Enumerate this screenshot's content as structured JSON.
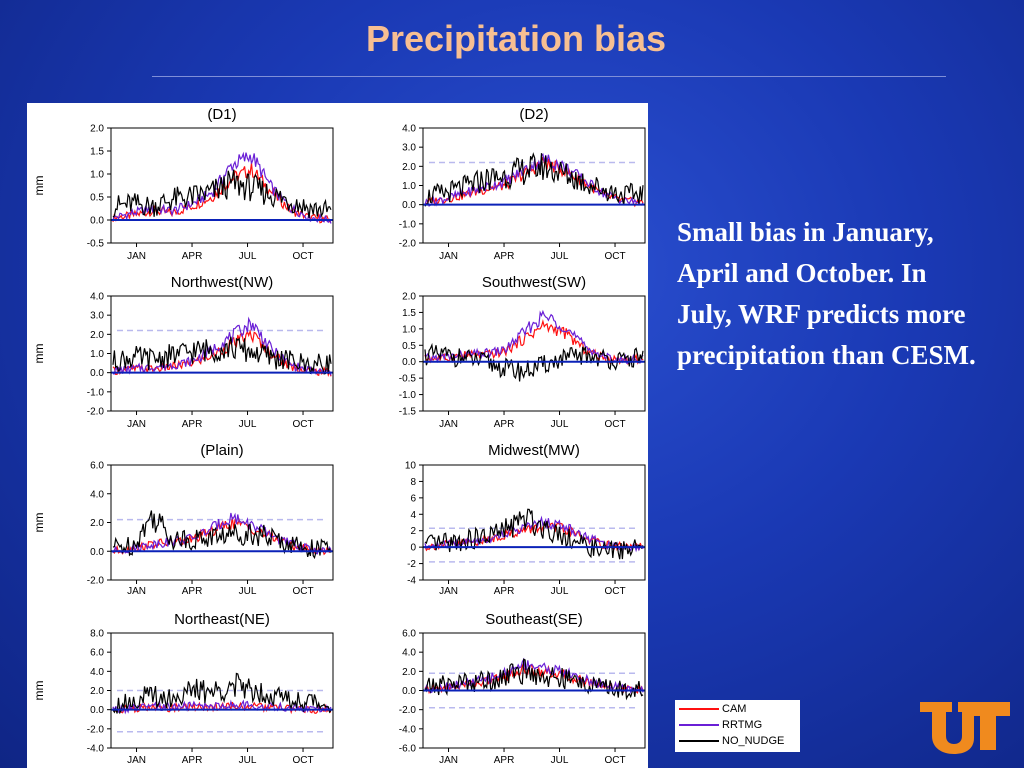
{
  "slide": {
    "title": "Precipitation bias",
    "body_text": "Small bias in January, April and October. In July, WRF predicts more precipitation than CESM."
  },
  "colors": {
    "background": "#1a39b4",
    "title": "#f7bf92",
    "CAM": "#ff1010",
    "RRTMG": "#6a1fd6",
    "NO_NUDGE": "#000000",
    "zero_line": "#0b22b8",
    "dashed_band": "#b9b9ee"
  },
  "legend": {
    "items": [
      {
        "label": "CAM",
        "color": "#ff1010"
      },
      {
        "label": "RRTMG",
        "color": "#6a1fd6"
      },
      {
        "label": "NO_NUDGE",
        "color": "#000000"
      }
    ]
  },
  "logo": {
    "name": "ut-logo-icon",
    "color": "#f08a1e"
  },
  "chart_data": [
    {
      "type": "line",
      "title": "(D1)",
      "ylabel": "mm",
      "ylim": [
        -0.5,
        2.0
      ],
      "yticks": [
        "2.0",
        "1.5",
        "1.0",
        "0.5",
        "0.0",
        "-0.5"
      ],
      "band": null,
      "xticks": [
        "JAN",
        "APR",
        "JUL",
        "OCT"
      ],
      "series": [
        {
          "name": "CAM",
          "values": [
            0.05,
            0.1,
            0.2,
            0.15,
            0.3,
            0.5,
            0.9,
            1.1,
            0.6,
            0.2,
            0.05,
            0.0
          ]
        },
        {
          "name": "RRTMG",
          "values": [
            0.05,
            0.15,
            0.25,
            0.2,
            0.35,
            0.6,
            1.2,
            1.4,
            0.7,
            0.25,
            0.05,
            0.0
          ]
        },
        {
          "name": "NO_NUDGE",
          "values": [
            0.3,
            0.35,
            0.3,
            0.45,
            0.5,
            0.6,
            0.8,
            0.7,
            0.55,
            0.4,
            0.25,
            0.2
          ]
        }
      ]
    },
    {
      "type": "line",
      "title": "(D2)",
      "ylabel": "",
      "ylim": [
        -2.0,
        4.0
      ],
      "yticks": [
        "4.0",
        "3.0",
        "2.0",
        "1.0",
        "0.0",
        "-1.0",
        "-2.0"
      ],
      "band": [
        2.2
      ],
      "xticks": [
        "JAN",
        "APR",
        "JUL",
        "OCT"
      ],
      "series": [
        {
          "name": "CAM",
          "values": [
            0.1,
            0.3,
            0.5,
            0.8,
            1.0,
            1.6,
            2.2,
            1.8,
            1.2,
            0.5,
            0.2,
            0.1
          ]
        },
        {
          "name": "RRTMG",
          "values": [
            0.1,
            0.3,
            0.6,
            0.9,
            1.2,
            1.8,
            2.4,
            2.0,
            1.3,
            0.6,
            0.2,
            0.1
          ]
        },
        {
          "name": "NO_NUDGE",
          "values": [
            0.4,
            0.6,
            0.9,
            1.3,
            1.5,
            1.8,
            2.0,
            1.6,
            1.2,
            0.8,
            0.5,
            0.6
          ]
        }
      ]
    },
    {
      "type": "line",
      "title": "Northwest(NW)",
      "ylabel": "mm",
      "ylim": [
        -2.0,
        4.0
      ],
      "yticks": [
        "4.0",
        "3.0",
        "2.0",
        "1.0",
        "0.0",
        "-1.0",
        "-2.0"
      ],
      "band": [
        2.2
      ],
      "xticks": [
        "JAN",
        "APR",
        "JUL",
        "OCT"
      ],
      "series": [
        {
          "name": "CAM",
          "values": [
            0.1,
            0.2,
            0.2,
            0.3,
            0.5,
            0.9,
            1.5,
            2.0,
            1.0,
            0.3,
            0.1,
            0.0
          ]
        },
        {
          "name": "RRTMG",
          "values": [
            0.1,
            0.2,
            0.3,
            0.4,
            0.6,
            1.2,
            1.9,
            2.6,
            1.2,
            0.4,
            0.1,
            0.0
          ]
        },
        {
          "name": "NO_NUDGE",
          "values": [
            0.6,
            0.8,
            0.7,
            0.9,
            1.1,
            1.2,
            1.3,
            1.1,
            0.8,
            0.6,
            0.4,
            0.5
          ]
        }
      ]
    },
    {
      "type": "line",
      "title": "Southwest(SW)",
      "ylabel": "",
      "ylim": [
        -1.5,
        2.0
      ],
      "yticks": [
        "2.0",
        "1.5",
        "1.0",
        "0.5",
        "0.0",
        "-0.5",
        "-1.0",
        "-1.5"
      ],
      "band": null,
      "xticks": [
        "JAN",
        "APR",
        "JUL",
        "OCT"
      ],
      "series": [
        {
          "name": "CAM",
          "values": [
            0.1,
            0.1,
            0.2,
            0.2,
            0.3,
            0.7,
            1.1,
            0.9,
            0.4,
            0.1,
            0.05,
            0.1
          ]
        },
        {
          "name": "RRTMG",
          "values": [
            0.1,
            0.15,
            0.2,
            0.25,
            0.35,
            0.9,
            1.4,
            1.1,
            0.5,
            0.15,
            0.05,
            0.1
          ]
        },
        {
          "name": "NO_NUDGE",
          "values": [
            0.2,
            0.2,
            0.1,
            0.0,
            -0.2,
            -0.3,
            -0.1,
            0.1,
            0.2,
            0.1,
            0.0,
            0.2
          ]
        }
      ]
    },
    {
      "type": "line",
      "title": "(Plain)",
      "ylabel": "mm",
      "ylim": [
        -2.0,
        6.0
      ],
      "yticks": [
        "6.0",
        "4.0",
        "2.0",
        "0.0",
        "-2.0"
      ],
      "band": [
        2.2
      ],
      "xticks": [
        "JAN",
        "APR",
        "JUL",
        "OCT"
      ],
      "series": [
        {
          "name": "CAM",
          "values": [
            0.0,
            0.2,
            0.5,
            0.6,
            0.8,
            1.4,
            2.0,
            1.6,
            1.0,
            0.4,
            0.1,
            0.0
          ]
        },
        {
          "name": "RRTMG",
          "values": [
            0.0,
            0.2,
            0.5,
            0.7,
            0.9,
            1.6,
            2.4,
            1.8,
            1.1,
            0.5,
            0.1,
            0.0
          ]
        },
        {
          "name": "NO_NUDGE",
          "values": [
            0.3,
            0.4,
            2.5,
            0.9,
            0.8,
            1.0,
            1.2,
            1.3,
            0.9,
            0.5,
            0.2,
            0.2
          ]
        }
      ]
    },
    {
      "type": "line",
      "title": "Midwest(MW)",
      "ylabel": "",
      "ylim": [
        -4,
        10
      ],
      "yticks": [
        "10",
        "8",
        "6",
        "4",
        "2",
        "0",
        "-2",
        "-4"
      ],
      "band": [
        2.3,
        -1.8
      ],
      "xticks": [
        "JAN",
        "APR",
        "JUL",
        "OCT"
      ],
      "series": [
        {
          "name": "CAM",
          "values": [
            0.0,
            0.3,
            0.5,
            0.8,
            1.5,
            2.0,
            2.5,
            2.2,
            1.2,
            0.3,
            0.1,
            0.0
          ]
        },
        {
          "name": "RRTMG",
          "values": [
            0.0,
            0.3,
            0.6,
            0.9,
            1.7,
            2.4,
            3.0,
            2.6,
            1.4,
            0.4,
            0.1,
            0.0
          ]
        },
        {
          "name": "NO_NUDGE",
          "values": [
            0.2,
            0.5,
            0.8,
            1.2,
            2.0,
            3.5,
            2.5,
            1.5,
            0.2,
            -0.5,
            -0.3,
            0.2
          ]
        }
      ]
    },
    {
      "type": "line",
      "title": "Northeast(NE)",
      "ylabel": "mm",
      "ylim": [
        -4.0,
        8.0
      ],
      "yticks": [
        "8.0",
        "6.0",
        "4.0",
        "2.0",
        "0.0",
        "-2.0",
        "-4.0"
      ],
      "band": [
        2.0,
        -2.3
      ],
      "xticks": [
        "JAN",
        "APR",
        "JUL",
        "OCT"
      ],
      "series": [
        {
          "name": "CAM",
          "values": [
            0.0,
            0.1,
            0.2,
            0.2,
            0.3,
            0.3,
            0.4,
            0.3,
            0.2,
            0.1,
            0.0,
            0.0
          ]
        },
        {
          "name": "RRTMG",
          "values": [
            0.0,
            0.1,
            0.3,
            0.3,
            0.4,
            0.4,
            0.5,
            0.4,
            0.3,
            0.2,
            0.1,
            0.0
          ]
        },
        {
          "name": "NO_NUDGE",
          "values": [
            0.5,
            1.0,
            1.5,
            1.2,
            2.0,
            1.8,
            2.5,
            2.2,
            1.6,
            1.0,
            0.8,
            0.6
          ]
        }
      ]
    },
    {
      "type": "line",
      "title": "Southeast(SE)",
      "ylabel": "",
      "ylim": [
        -6.0,
        6.0
      ],
      "yticks": [
        "6.0",
        "4.0",
        "2.0",
        "0.0",
        "-2.0",
        "-4.0",
        "-6.0"
      ],
      "band": [
        1.8,
        -1.8
      ],
      "xticks": [
        "JAN",
        "APR",
        "JUL",
        "OCT"
      ],
      "series": [
        {
          "name": "CAM",
          "values": [
            0.1,
            0.3,
            0.6,
            0.9,
            1.5,
            2.2,
            2.0,
            1.6,
            1.0,
            0.5,
            0.2,
            0.1
          ]
        },
        {
          "name": "RRTMG",
          "values": [
            0.1,
            0.4,
            0.7,
            1.1,
            1.8,
            2.8,
            2.4,
            1.9,
            1.2,
            0.6,
            0.2,
            0.1
          ]
        },
        {
          "name": "NO_NUDGE",
          "values": [
            0.3,
            0.6,
            0.9,
            1.0,
            1.5,
            2.0,
            1.5,
            1.2,
            0.8,
            0.3,
            0.1,
            0.3
          ]
        }
      ]
    }
  ]
}
